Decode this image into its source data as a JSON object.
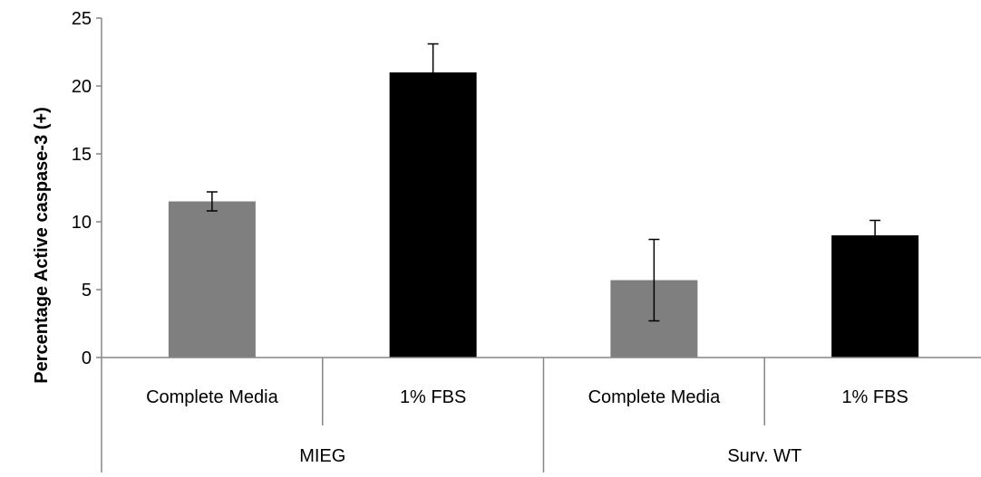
{
  "chart_data": {
    "type": "bar",
    "title": "",
    "xlabel": "",
    "ylabel": "Percentage Active caspase-3 (+)",
    "ylim": [
      0,
      25
    ],
    "yticks": [
      0,
      5,
      10,
      15,
      20,
      25
    ],
    "grid": false,
    "legend": "none",
    "groups": [
      {
        "label": "MIEG",
        "bars": [
          {
            "category": "Complete Media",
            "value": 11.5,
            "error": 0.7,
            "color": "#7f7f7f"
          },
          {
            "category": "1% FBS",
            "value": 21.0,
            "error": 2.1,
            "color": "#000000"
          }
        ]
      },
      {
        "label": "Surv. WT",
        "bars": [
          {
            "category": "Complete Media",
            "value": 5.7,
            "error": 3.0,
            "color": "#7f7f7f"
          },
          {
            "category": "1% FBS",
            "value": 9.0,
            "error": 1.1,
            "color": "#000000"
          }
        ]
      }
    ]
  }
}
